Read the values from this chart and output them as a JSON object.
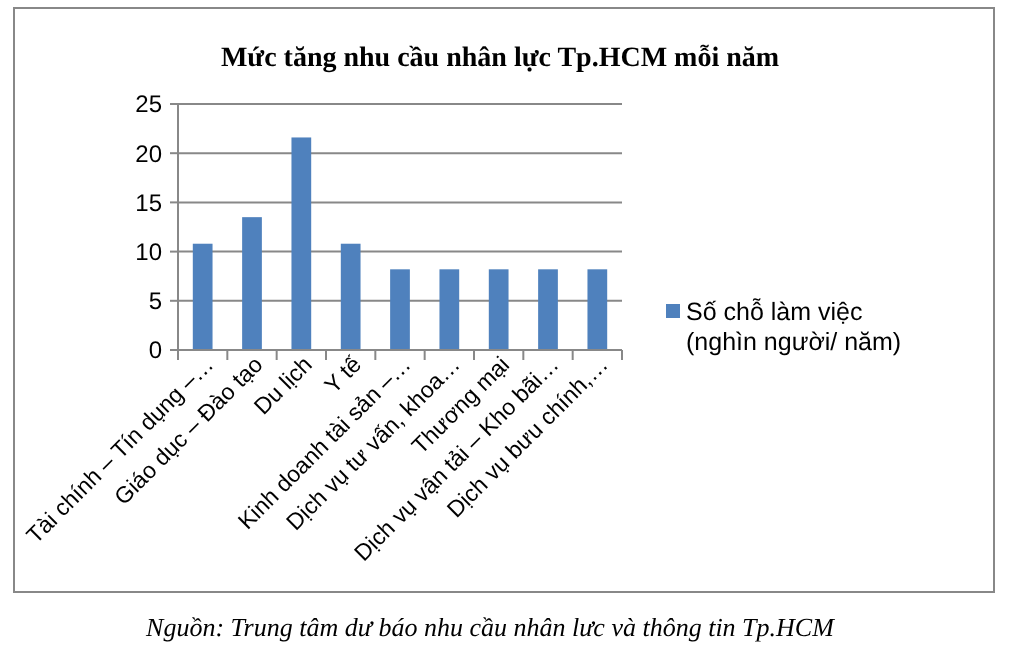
{
  "chart_data": {
    "type": "bar",
    "title": "Mức tăng nhu cầu nhân lực Tp.HCM  mỗi năm",
    "categories": [
      "Tài chính – Tín dụng –…",
      "Giáo dục – Đào tạo",
      "Du lịch",
      "Y tế",
      "Kinh doanh tài sản –…",
      "Dịch vụ tư vấn, khoa…",
      "Thương mại",
      "Dịch vụ vận tải – Kho bãi…",
      "Dịch vụ bưu chính,…"
    ],
    "series": [
      {
        "name": "Số chỗ làm việc (nghìn người/ năm)",
        "color": "#4f81bd",
        "values": [
          10.8,
          13.5,
          21.6,
          10.8,
          8.2,
          8.2,
          8.2,
          8.2,
          8.2
        ]
      }
    ],
    "ylim": [
      0,
      25
    ],
    "yticks": [
      0,
      5,
      10,
      15,
      20,
      25
    ],
    "grid": "y",
    "legend": "right",
    "annotations": [
      "Nguồn: Trung tâm dư báo nhu cầu nhân lưc và thông tin Tp.HCM"
    ]
  }
}
